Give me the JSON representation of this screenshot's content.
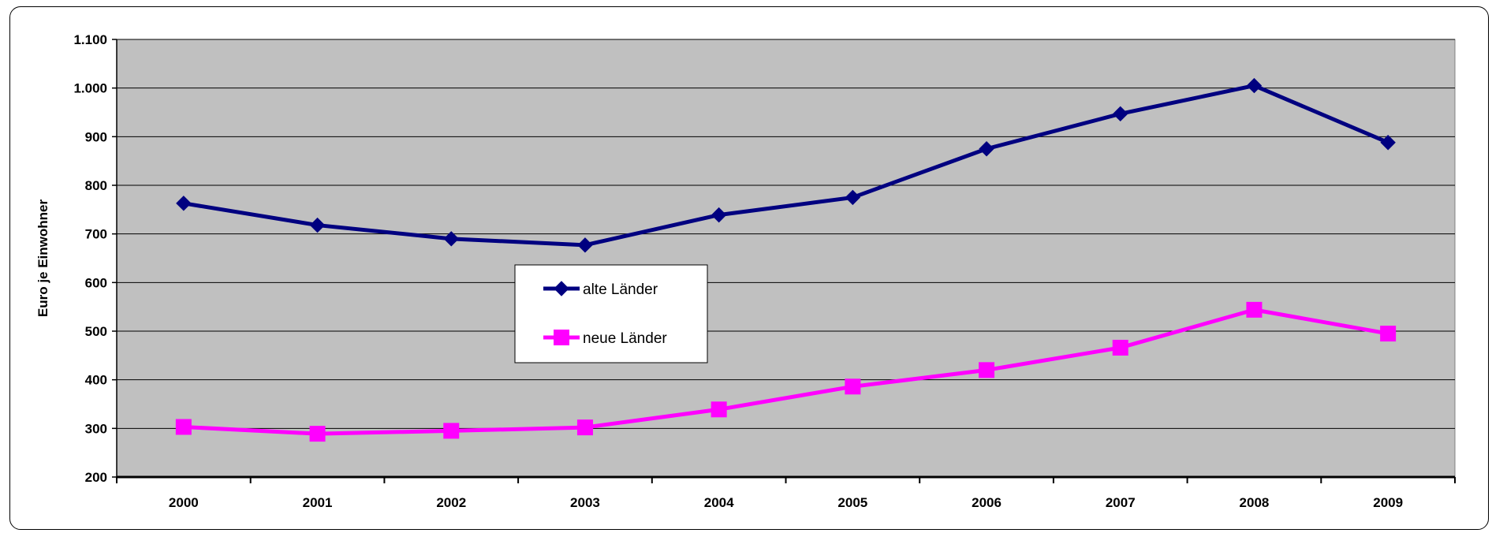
{
  "chart_data": {
    "type": "line",
    "categories": [
      "2000",
      "2001",
      "2002",
      "2003",
      "2004",
      "2005",
      "2006",
      "2007",
      "2008",
      "2009"
    ],
    "series": [
      {
        "name": "alte Länder",
        "values": [
          763,
          718,
          690,
          677,
          739,
          775,
          875,
          947,
          1005,
          888
        ],
        "color": "#000080",
        "marker": "diamond"
      },
      {
        "name": "neue Länder",
        "values": [
          303,
          289,
          295,
          302,
          339,
          386,
          420,
          466,
          544,
          495
        ],
        "color": "#ff00ff",
        "marker": "square"
      }
    ],
    "yticks": [
      "200",
      "300",
      "400",
      "500",
      "600",
      "700",
      "800",
      "900",
      "1.000",
      "1.100"
    ],
    "ylim": [
      200,
      1100
    ],
    "ylabel": "Euro je Einwohner",
    "xlabel": "",
    "grid": true,
    "plot_background": "#c0c0c0",
    "legend_position": "center-left"
  }
}
